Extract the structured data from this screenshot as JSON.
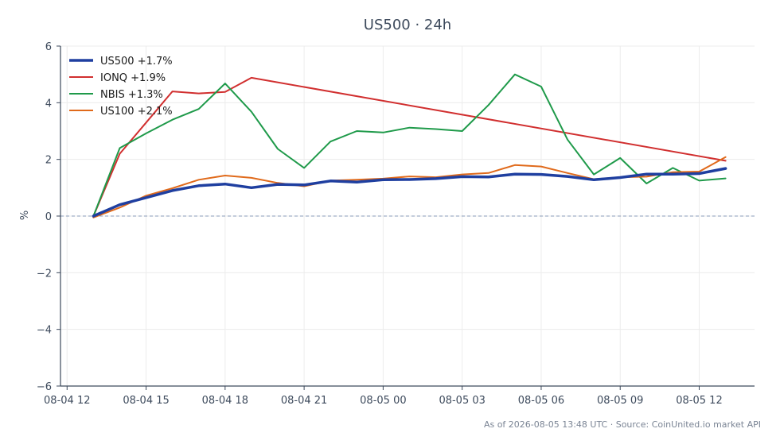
{
  "chart_data": {
    "type": "line",
    "title": "US500 · 24h",
    "ylabel": "%",
    "xlabel": "",
    "ylim": [
      -6,
      6
    ],
    "y_ticks": [
      -6,
      -4,
      -2,
      0,
      2,
      4,
      6
    ],
    "y_tick_labels": [
      "−6",
      "−4",
      "−2",
      "0",
      "2",
      "4",
      "6"
    ],
    "x_ticks": [
      0,
      3,
      6,
      9,
      12,
      15,
      18,
      21,
      24
    ],
    "x_tick_labels": [
      "08-04 12",
      "08-04 15",
      "08-04 18",
      "08-04 21",
      "08-05 00",
      "08-05 03",
      "08-05 06",
      "08-05 09",
      "08-05 12"
    ],
    "xlim": [
      -0.25,
      26.1
    ],
    "x": [
      1,
      2,
      3,
      4,
      5,
      6,
      7,
      8,
      9,
      10,
      11,
      12,
      13,
      14,
      15,
      16,
      17,
      18,
      19,
      20,
      21,
      22,
      23,
      24,
      25
    ],
    "grid": true,
    "legend_position": "top-left",
    "zero_line": true,
    "series": [
      {
        "name": "US500 +1.7%",
        "color": "#1f3fa0",
        "width": 3.5,
        "values": [
          0.0,
          0.4,
          0.65,
          0.9,
          1.07,
          1.13,
          1.0,
          1.12,
          1.1,
          1.24,
          1.2,
          1.28,
          1.29,
          1.32,
          1.39,
          1.38,
          1.48,
          1.47,
          1.4,
          1.28,
          1.36,
          1.48,
          1.48,
          1.5,
          1.68
        ]
      },
      {
        "name": "IONQ +1.9%",
        "color": "#d12f2f",
        "width": 2,
        "x": [
          1,
          2,
          3,
          4,
          5,
          6,
          7,
          25
        ],
        "values": [
          0.0,
          2.2,
          3.3,
          4.4,
          4.33,
          4.38,
          4.88,
          1.95
        ]
      },
      {
        "name": "NBIS +1.3%",
        "color": "#1f9a4a",
        "width": 2,
        "values": [
          0.0,
          2.4,
          2.92,
          3.4,
          3.78,
          4.68,
          3.68,
          2.37,
          1.7,
          2.63,
          3.0,
          2.95,
          3.12,
          3.07,
          3.0,
          3.92,
          5.0,
          4.57,
          2.7,
          1.47,
          2.05,
          1.15,
          1.7,
          1.25,
          1.33
        ]
      },
      {
        "name": "US100 +2.1%",
        "color": "#e06a1b",
        "width": 2,
        "values": [
          -0.05,
          0.3,
          0.72,
          0.98,
          1.28,
          1.43,
          1.35,
          1.17,
          1.05,
          1.25,
          1.28,
          1.32,
          1.4,
          1.37,
          1.47,
          1.52,
          1.8,
          1.75,
          1.52,
          1.3,
          1.37,
          1.39,
          1.55,
          1.57,
          2.08
        ]
      }
    ]
  },
  "footer": "As of 2026-08-05 13:48 UTC · Source: CoinUnited.io market API"
}
